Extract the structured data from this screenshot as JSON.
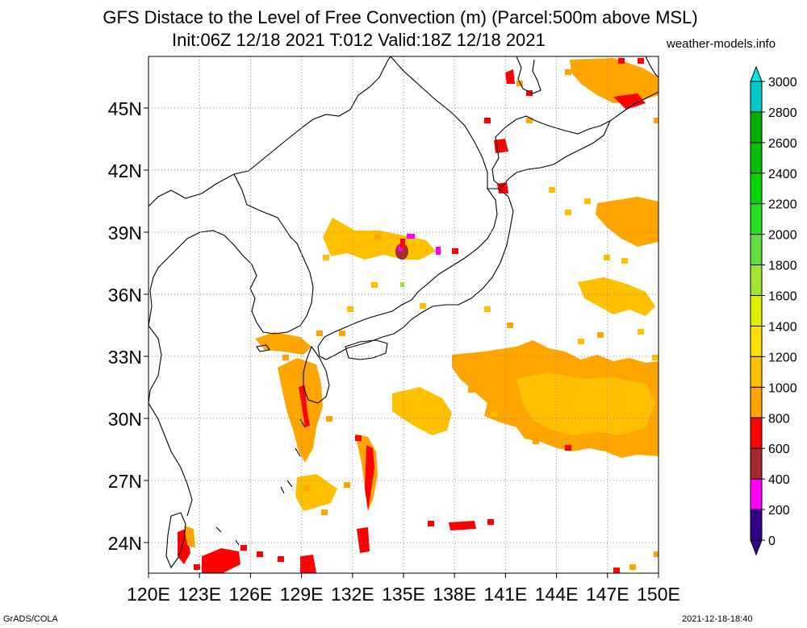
{
  "header": {
    "title_line1": "GFS Distace to the Level of Free Convection (m) (Parcel:500m above MSL)",
    "title_line2": "Init:06Z 12/18 2021 T:012 Valid:18Z 12/18 2021",
    "site": "weather-models.info"
  },
  "footer": {
    "left": "GrADS/COLA",
    "right": "2021-12-18-18:40"
  },
  "map": {
    "lon_labels": [
      "120E",
      "123E",
      "126E",
      "129E",
      "132E",
      "135E",
      "138E",
      "141E",
      "144E",
      "147E",
      "150E"
    ],
    "lat_labels": [
      "45N",
      "42N",
      "39N",
      "36N",
      "33N",
      "30N",
      "27N",
      "24N"
    ],
    "gridlines": "dotted"
  },
  "colorbar": {
    "labels": [
      "3000",
      "2800",
      "2600",
      "2400",
      "2200",
      "2000",
      "1800",
      "1600",
      "1400",
      "1200",
      "1000",
      "800",
      "600",
      "400",
      "200",
      "0"
    ],
    "colors": [
      "#00e5e5",
      "#00c9c9",
      "#00b000",
      "#00c000",
      "#00d800",
      "#20e020",
      "#60e040",
      "#a0e830",
      "#e0f000",
      "#ffe000",
      "#ffc000",
      "#ffa500",
      "#ff0000",
      "#a52a2a",
      "#ff00ff",
      "#330088"
    ]
  },
  "colors": {
    "orange": "#ffa500",
    "amber": "#ffc000",
    "yellow": "#ffe000",
    "red": "#ff0000",
    "brown": "#a52a2a",
    "magenta": "#ff00ff",
    "coast": "#000000"
  }
}
